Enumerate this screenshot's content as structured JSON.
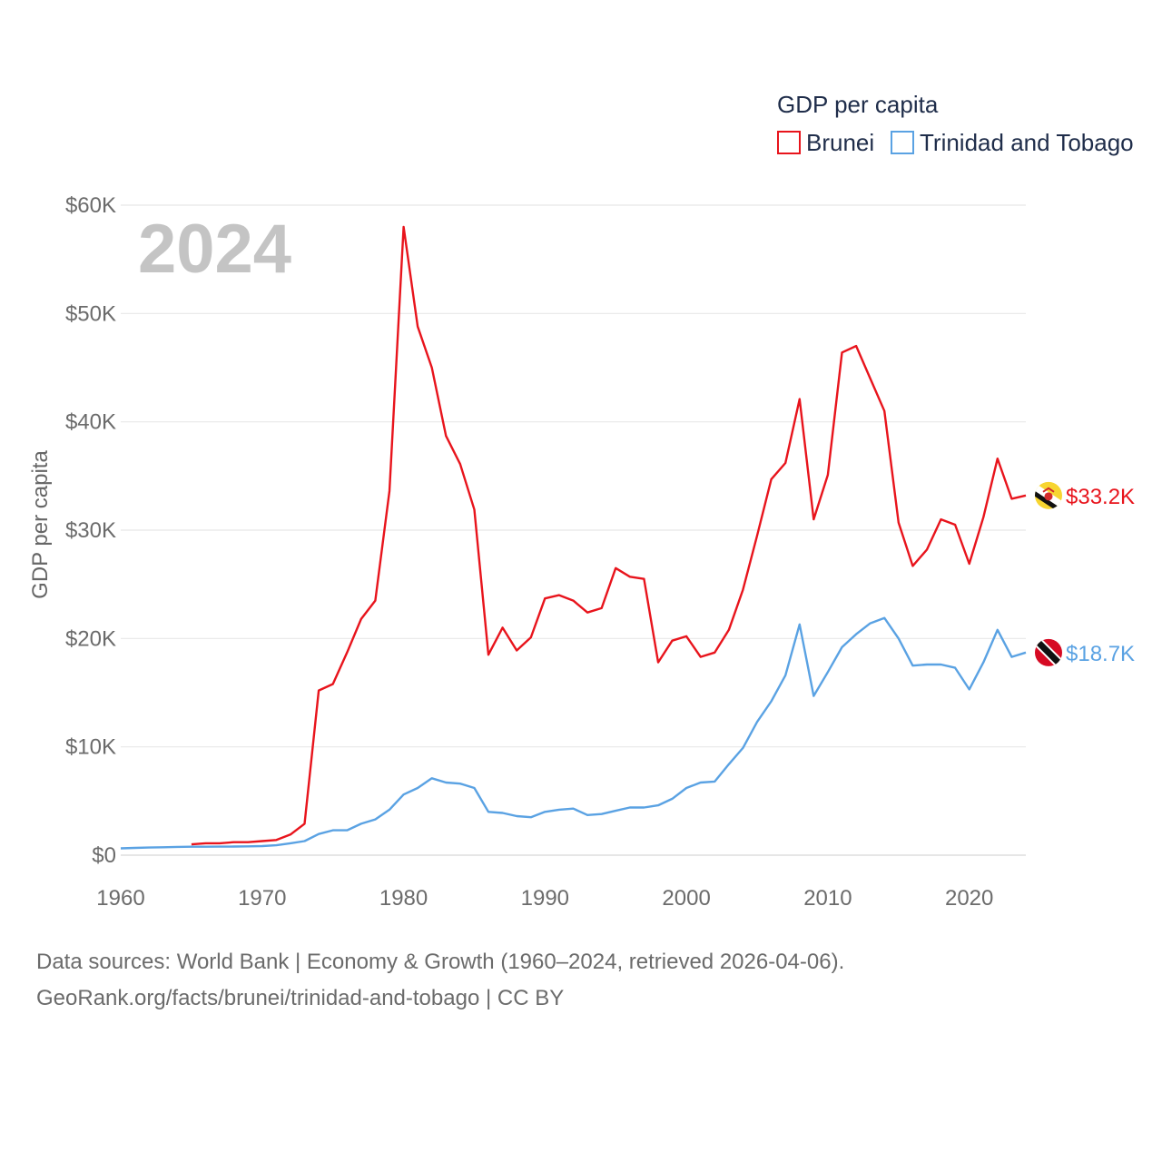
{
  "chart_data": {
    "type": "line",
    "title": "GDP per capita",
    "year_label": "2024",
    "ylabel": "GDP per capita",
    "xlabel": "",
    "xlim": [
      1960,
      2024
    ],
    "ylim": [
      0,
      60000
    ],
    "x_ticks": [
      1960,
      1970,
      1980,
      1990,
      2000,
      2010,
      2020
    ],
    "x_tick_labels": [
      "1960",
      "1970",
      "1980",
      "1990",
      "2000",
      "2010",
      "2020"
    ],
    "y_ticks": [
      0,
      10000,
      20000,
      30000,
      40000,
      50000,
      60000
    ],
    "y_tick_labels": [
      "$0",
      "$10K",
      "$20K",
      "$30K",
      "$40K",
      "$50K",
      "$60K"
    ],
    "legend": {
      "title": "GDP per capita",
      "placement": "top-right"
    },
    "grid": true,
    "series": [
      {
        "name": "Brunei",
        "color": "#e8141c",
        "end_label": "$33.2K",
        "flag": "brunei-flag-icon",
        "points": [
          [
            1965,
            1000
          ],
          [
            1966,
            1100
          ],
          [
            1967,
            1100
          ],
          [
            1968,
            1200
          ],
          [
            1969,
            1200
          ],
          [
            1970,
            1300
          ],
          [
            1971,
            1400
          ],
          [
            1972,
            1900
          ],
          [
            1973,
            2900
          ],
          [
            1974,
            15200
          ],
          [
            1975,
            15800
          ],
          [
            1976,
            18700
          ],
          [
            1977,
            21800
          ],
          [
            1978,
            23500
          ],
          [
            1979,
            33600
          ],
          [
            1980,
            58000
          ],
          [
            1981,
            48800
          ],
          [
            1982,
            45000
          ],
          [
            1983,
            38700
          ],
          [
            1984,
            36100
          ],
          [
            1985,
            31900
          ],
          [
            1986,
            18500
          ],
          [
            1987,
            21000
          ],
          [
            1988,
            18900
          ],
          [
            1989,
            20100
          ],
          [
            1990,
            23700
          ],
          [
            1991,
            24000
          ],
          [
            1992,
            23500
          ],
          [
            1993,
            22400
          ],
          [
            1994,
            22800
          ],
          [
            1995,
            26500
          ],
          [
            1996,
            25700
          ],
          [
            1997,
            25500
          ],
          [
            1998,
            17800
          ],
          [
            1999,
            19800
          ],
          [
            2000,
            20200
          ],
          [
            2001,
            18300
          ],
          [
            2002,
            18700
          ],
          [
            2003,
            20800
          ],
          [
            2004,
            24500
          ],
          [
            2005,
            29500
          ],
          [
            2006,
            34700
          ],
          [
            2007,
            36200
          ],
          [
            2008,
            42100
          ],
          [
            2009,
            31000
          ],
          [
            2010,
            35100
          ],
          [
            2011,
            46400
          ],
          [
            2012,
            47000
          ],
          [
            2013,
            44000
          ],
          [
            2014,
            41000
          ],
          [
            2015,
            30700
          ],
          [
            2016,
            26700
          ],
          [
            2017,
            28200
          ],
          [
            2018,
            31000
          ],
          [
            2019,
            30500
          ],
          [
            2020,
            26900
          ],
          [
            2021,
            31200
          ],
          [
            2022,
            36600
          ],
          [
            2023,
            32900
          ],
          [
            2024,
            33200
          ]
        ]
      },
      {
        "name": "Trinidad and Tobago",
        "color": "#5aa2e3",
        "end_label": "$18.7K",
        "flag": "trinidad-flag-icon",
        "points": [
          [
            1960,
            630
          ],
          [
            1961,
            670
          ],
          [
            1962,
            700
          ],
          [
            1963,
            730
          ],
          [
            1964,
            760
          ],
          [
            1965,
            780
          ],
          [
            1966,
            780
          ],
          [
            1967,
            790
          ],
          [
            1968,
            800
          ],
          [
            1969,
            810
          ],
          [
            1970,
            840
          ],
          [
            1971,
            910
          ],
          [
            1972,
            1100
          ],
          [
            1973,
            1300
          ],
          [
            1974,
            1950
          ],
          [
            1975,
            2300
          ],
          [
            1976,
            2300
          ],
          [
            1977,
            2900
          ],
          [
            1978,
            3300
          ],
          [
            1979,
            4200
          ],
          [
            1980,
            5600
          ],
          [
            1981,
            6200
          ],
          [
            1982,
            7100
          ],
          [
            1983,
            6700
          ],
          [
            1984,
            6600
          ],
          [
            1985,
            6200
          ],
          [
            1986,
            4000
          ],
          [
            1987,
            3900
          ],
          [
            1988,
            3600
          ],
          [
            1989,
            3500
          ],
          [
            1990,
            4000
          ],
          [
            1991,
            4200
          ],
          [
            1992,
            4300
          ],
          [
            1993,
            3700
          ],
          [
            1994,
            3800
          ],
          [
            1995,
            4100
          ],
          [
            1996,
            4400
          ],
          [
            1997,
            4400
          ],
          [
            1998,
            4600
          ],
          [
            1999,
            5200
          ],
          [
            2000,
            6200
          ],
          [
            2001,
            6700
          ],
          [
            2002,
            6800
          ],
          [
            2003,
            8400
          ],
          [
            2004,
            9900
          ],
          [
            2005,
            12300
          ],
          [
            2006,
            14200
          ],
          [
            2007,
            16600
          ],
          [
            2008,
            21300
          ],
          [
            2009,
            14700
          ],
          [
            2010,
            16900
          ],
          [
            2011,
            19200
          ],
          [
            2012,
            20400
          ],
          [
            2013,
            21400
          ],
          [
            2014,
            21900
          ],
          [
            2015,
            20000
          ],
          [
            2016,
            17500
          ],
          [
            2017,
            17600
          ],
          [
            2018,
            17600
          ],
          [
            2019,
            17300
          ],
          [
            2020,
            15300
          ],
          [
            2021,
            17800
          ],
          [
            2022,
            20800
          ],
          [
            2023,
            18300
          ],
          [
            2024,
            18700
          ]
        ]
      }
    ]
  },
  "footer": {
    "line1": "Data sources: World Bank | Economy & Growth (1960–2024, retrieved 2026-04-06).",
    "line2": "GeoRank.org/facts/brunei/trinidad-and-tobago | CC BY"
  }
}
